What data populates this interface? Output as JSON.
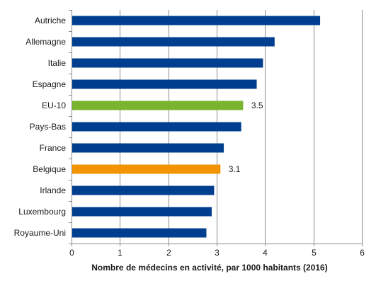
{
  "chart_data": {
    "type": "bar",
    "orientation": "horizontal",
    "categories": [
      "Autriche",
      "Allemagne",
      "Italie",
      "Espagne",
      "EU-10",
      "Pays-Bas",
      "France",
      "Belgique",
      "Irlande",
      "Luxembourg",
      "Royaume-Uni"
    ],
    "values": [
      5.13,
      4.19,
      3.95,
      3.82,
      3.54,
      3.5,
      3.14,
      3.07,
      2.94,
      2.89,
      2.78
    ],
    "bar_colors": [
      "#003f8f",
      "#003f8f",
      "#003f8f",
      "#003f8f",
      "#7ab32e",
      "#003f8f",
      "#003f8f",
      "#f29400",
      "#003f8f",
      "#003f8f",
      "#003f8f"
    ],
    "data_labels": [
      "",
      "",
      "",
      "",
      "3.5",
      "",
      "",
      "3.1",
      "",
      "",
      ""
    ],
    "x_ticks": [
      "0",
      "1",
      "2",
      "3",
      "4",
      "5",
      "6"
    ],
    "xlim": [
      0,
      6
    ],
    "xlabel": "Nombre de médecins en activité, par 1000 habitants (2016)",
    "ylabel": "",
    "title": "",
    "grid": "vertical"
  }
}
